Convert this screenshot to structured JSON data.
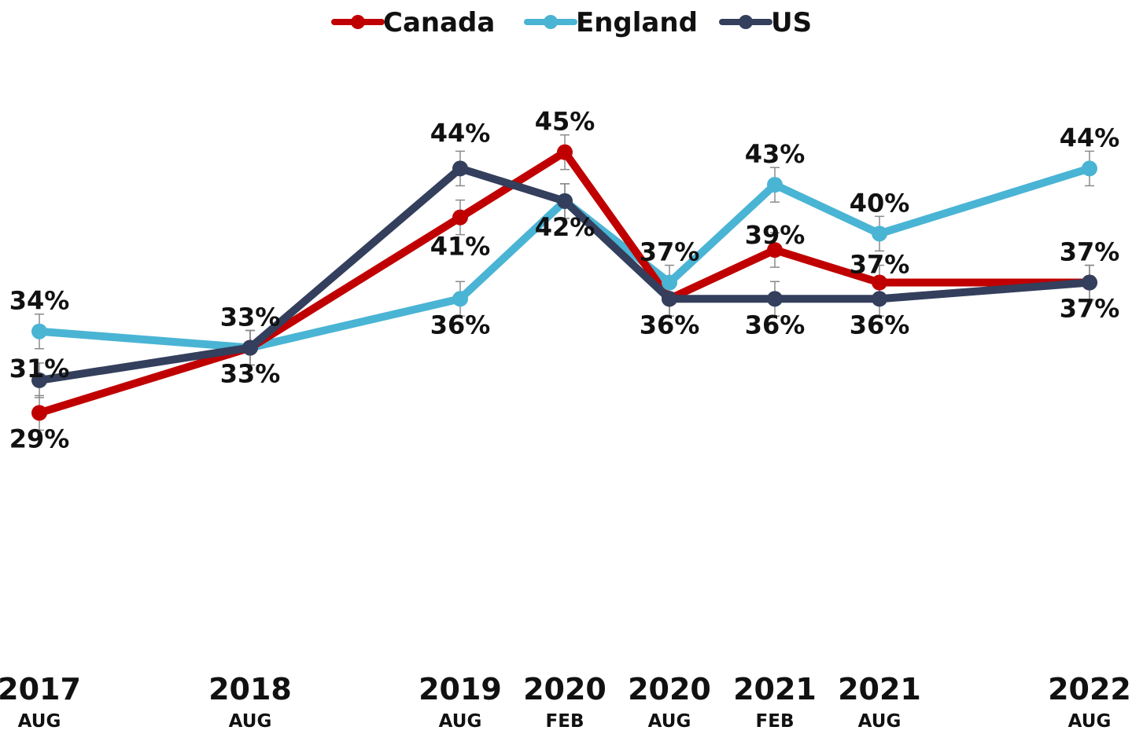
{
  "chart_data": {
    "type": "line",
    "title": "",
    "xlabel": "",
    "ylabel": "",
    "categories": [
      {
        "year": "2017",
        "period": "AUG"
      },
      {
        "year": "2018",
        "period": "AUG"
      },
      {
        "year": "2019",
        "period": "AUG"
      },
      {
        "year": "2020",
        "period": "FEB"
      },
      {
        "year": "2020",
        "period": "AUG"
      },
      {
        "year": "2021",
        "period": "FEB"
      },
      {
        "year": "2021",
        "period": "AUG"
      },
      {
        "year": "2022",
        "period": "AUG"
      }
    ],
    "x": [
      "2017-08",
      "2018-08",
      "2019-08",
      "2020-02",
      "2020-08",
      "2021-02",
      "2021-08",
      "2022-08"
    ],
    "ylim": [
      20,
      50
    ],
    "grid": false,
    "error_bars": true,
    "legend": "top-center",
    "series": [
      {
        "name": "Canada",
        "color": "#c00000",
        "values": [
          29,
          33,
          41,
          45,
          36,
          39,
          37,
          37
        ],
        "labels": [
          "29%",
          "",
          "41%",
          "45%",
          "",
          "39%",
          "37%",
          "37%"
        ]
      },
      {
        "name": "England",
        "color": "#4ab4d4",
        "values": [
          34,
          33,
          36,
          42,
          37,
          43,
          40,
          44
        ],
        "labels": [
          "34%",
          "33%",
          "36%",
          "42%",
          "37%",
          "43%",
          "40%",
          "44%"
        ]
      },
      {
        "name": "US",
        "color": "#333f5c",
        "values": [
          31,
          33,
          44,
          42,
          36,
          36,
          36,
          37
        ],
        "labels": [
          "31%",
          "33%",
          "44%",
          "",
          "36%",
          "36%",
          "36%",
          "37%"
        ]
      }
    ]
  }
}
